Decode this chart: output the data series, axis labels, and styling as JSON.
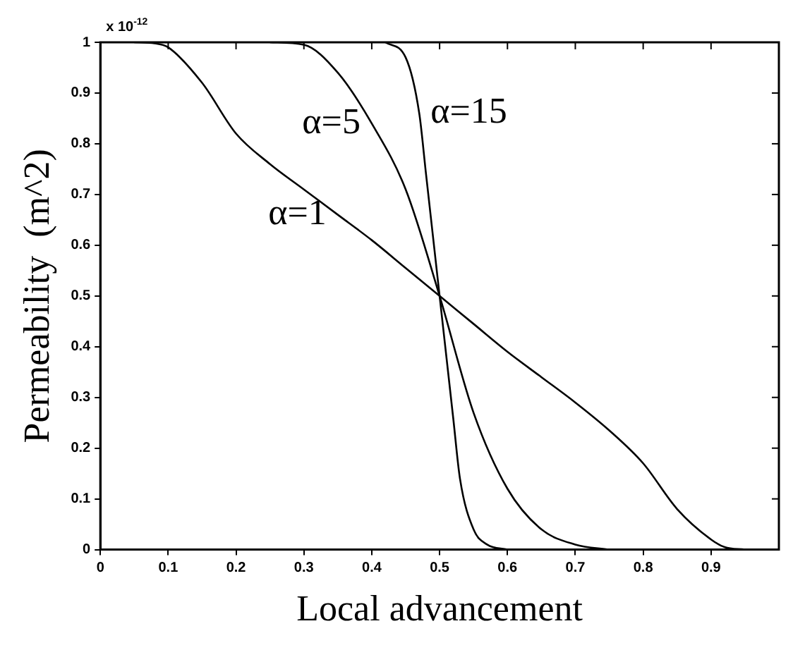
{
  "chart_data": {
    "type": "line",
    "xlabel": "Local advancement",
    "ylabel": "Permeability  (m^2)",
    "annotations": [
      "x 10$^{-12}$"
    ],
    "xlim": [
      0,
      1
    ],
    "ylim": [
      0,
      1
    ],
    "xticks": [
      0,
      0.1,
      0.2,
      0.3,
      0.4,
      0.5,
      0.6,
      0.7,
      0.8,
      0.9
    ],
    "yticks": [
      0,
      0.1,
      0.2,
      0.3,
      0.4,
      0.5,
      0.6,
      0.7,
      0.8,
      0.9,
      1
    ],
    "grid": false,
    "legend": "top",
    "marker": "none",
    "line_style": "solid",
    "series": [
      {
        "name": "α=1",
        "color": "#000000",
        "x": [
          0.05,
          0.08,
          0.1,
          0.15,
          0.2,
          0.25,
          0.3,
          0.35,
          0.4,
          0.45,
          0.5,
          0.55,
          0.6,
          0.65,
          0.7,
          0.75,
          0.8,
          0.85,
          0.9,
          0.92,
          0.95
        ],
        "values": [
          1,
          0.998,
          0.99,
          0.92,
          0.82,
          0.76,
          0.71,
          0.66,
          0.61,
          0.555,
          0.5,
          0.445,
          0.39,
          0.34,
          0.29,
          0.235,
          0.17,
          0.08,
          0.02,
          0.005,
          0
        ]
      },
      {
        "name": "α=5",
        "color": "#000000",
        "x": [
          0.25,
          0.3,
          0.35,
          0.4,
          0.45,
          0.5,
          0.55,
          0.6,
          0.65,
          0.7,
          0.75
        ],
        "values": [
          1,
          0.995,
          0.94,
          0.84,
          0.71,
          0.5,
          0.27,
          0.12,
          0.04,
          0.01,
          0
        ]
      },
      {
        "name": "α=15",
        "color": "#000000",
        "x": [
          0.42,
          0.45,
          0.47,
          0.48,
          0.5,
          0.52,
          0.53,
          0.55,
          0.57,
          0.6
        ],
        "values": [
          1,
          0.97,
          0.86,
          0.74,
          0.5,
          0.26,
          0.14,
          0.04,
          0.01,
          0
        ]
      }
    ]
  }
}
